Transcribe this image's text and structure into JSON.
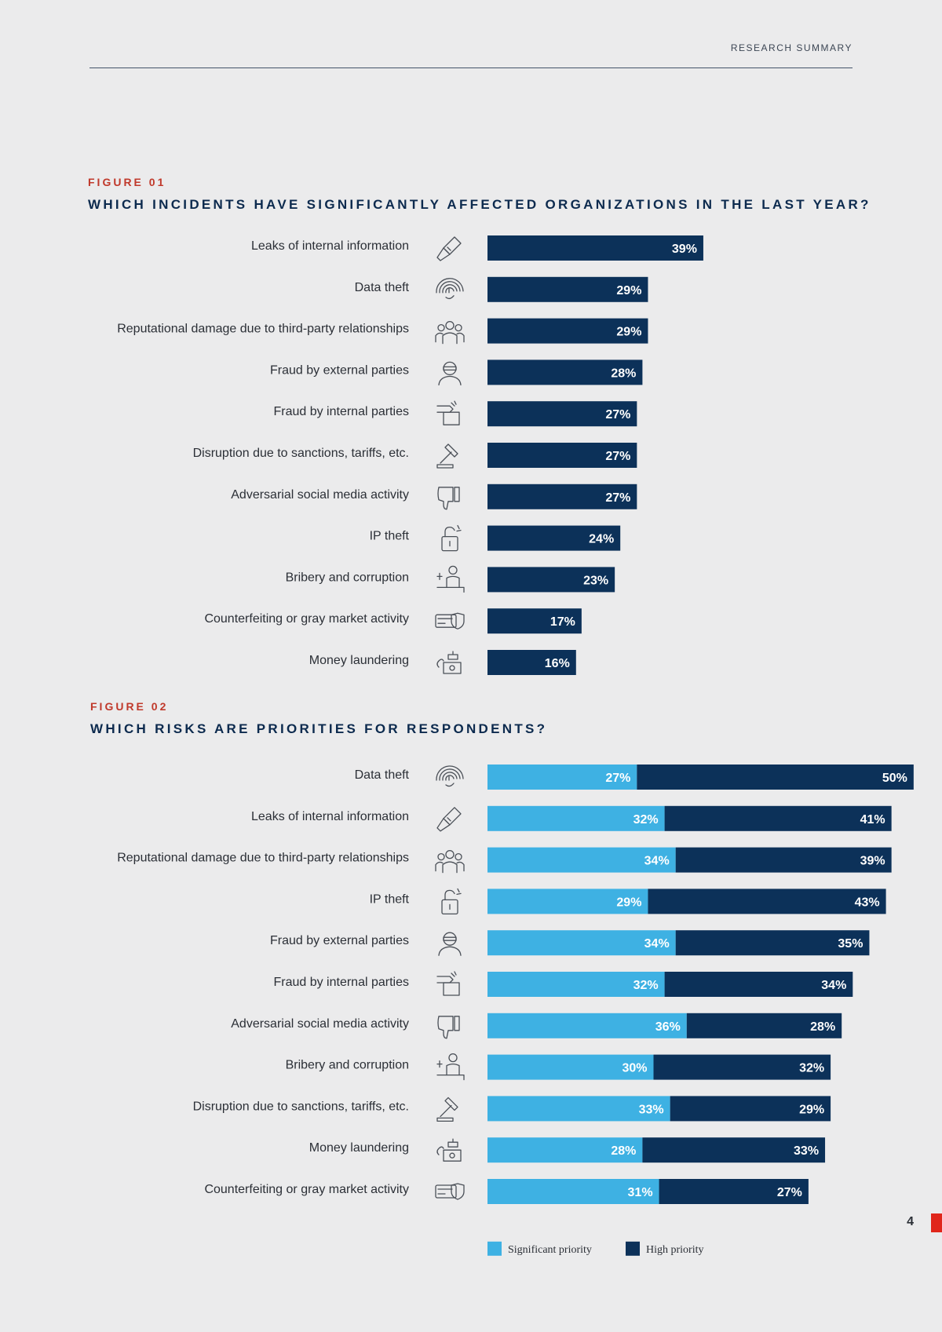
{
  "header": {
    "section_label": "RESEARCH SUMMARY"
  },
  "page_number": "4",
  "colors": {
    "high": "#0c3159",
    "significant": "#3eb1e3",
    "accent": "#c0392b",
    "title": "#0c2a4e"
  },
  "chart_data": [
    {
      "figure_label": "FIGURE 01",
      "title": "WHICH INCIDENTS HAVE SIGNIFICANTLY AFFECTED ORGANIZATIONS IN THE LAST YEAR?",
      "type": "bar",
      "orientation": "horizontal",
      "unit": "%",
      "xlim": [
        0,
        62
      ],
      "rows": [
        {
          "label": "Leaks of internal information",
          "icon": "screwdriver-icon",
          "values": [
            39
          ]
        },
        {
          "label": "Data theft",
          "icon": "fingerprint-icon",
          "values": [
            29
          ]
        },
        {
          "label": "Reputational damage due to third-party relationships",
          "icon": "people-group-icon",
          "values": [
            29
          ]
        },
        {
          "label": "Fraud by external parties",
          "icon": "masked-person-icon",
          "values": [
            28
          ]
        },
        {
          "label": "Fraud by internal parties",
          "icon": "hand-in-box-icon",
          "values": [
            27
          ]
        },
        {
          "label": "Disruption due to sanctions, tariffs, etc.",
          "icon": "gavel-icon",
          "values": [
            27
          ]
        },
        {
          "label": "Adversarial social media activity",
          "icon": "thumbs-down-icon",
          "values": [
            27
          ]
        },
        {
          "label": "IP theft",
          "icon": "broken-lock-icon",
          "values": [
            24
          ]
        },
        {
          "label": "Bribery and corruption",
          "icon": "bribe-hand-icon",
          "values": [
            23
          ]
        },
        {
          "label": "Counterfeiting or gray market activity",
          "icon": "card-shield-icon",
          "values": [
            17
          ]
        },
        {
          "label": "Money laundering",
          "icon": "money-wash-icon",
          "values": [
            16
          ]
        }
      ]
    },
    {
      "figure_label": "FIGURE 02",
      "title": "WHICH RISKS ARE PRIORITIES FOR RESPONDENTS?",
      "type": "bar",
      "orientation": "horizontal",
      "stacked": true,
      "unit": "%",
      "xlim": [
        0,
        62
      ],
      "series": [
        {
          "name": "Significant priority",
          "color": "#3eb1e3"
        },
        {
          "name": "High priority",
          "color": "#0c3159"
        }
      ],
      "rows": [
        {
          "label": "Data theft",
          "icon": "fingerprint-icon",
          "values": [
            27,
            50
          ]
        },
        {
          "label": "Leaks of internal information",
          "icon": "screwdriver-icon",
          "values": [
            32,
            41
          ]
        },
        {
          "label": "Reputational damage due to third-party relationships",
          "icon": "people-group-icon",
          "values": [
            34,
            39
          ]
        },
        {
          "label": "IP theft",
          "icon": "broken-lock-icon",
          "values": [
            29,
            43
          ]
        },
        {
          "label": "Fraud by external parties",
          "icon": "masked-person-icon",
          "values": [
            34,
            35
          ]
        },
        {
          "label": "Fraud by internal parties",
          "icon": "hand-in-box-icon",
          "values": [
            32,
            34
          ]
        },
        {
          "label": "Adversarial social media activity",
          "icon": "thumbs-down-icon",
          "values": [
            36,
            28
          ]
        },
        {
          "label": "Bribery and corruption",
          "icon": "bribe-hand-icon",
          "values": [
            30,
            32
          ]
        },
        {
          "label": "Disruption due to sanctions, tariffs, etc.",
          "icon": "gavel-icon",
          "values": [
            33,
            29
          ]
        },
        {
          "label": "Money laundering",
          "icon": "money-wash-icon",
          "values": [
            28,
            33
          ]
        },
        {
          "label": "Counterfeiting or gray market activity",
          "icon": "card-shield-icon",
          "values": [
            31,
            27
          ]
        }
      ],
      "legend": [
        "Significant priority",
        "High priority"
      ]
    }
  ]
}
